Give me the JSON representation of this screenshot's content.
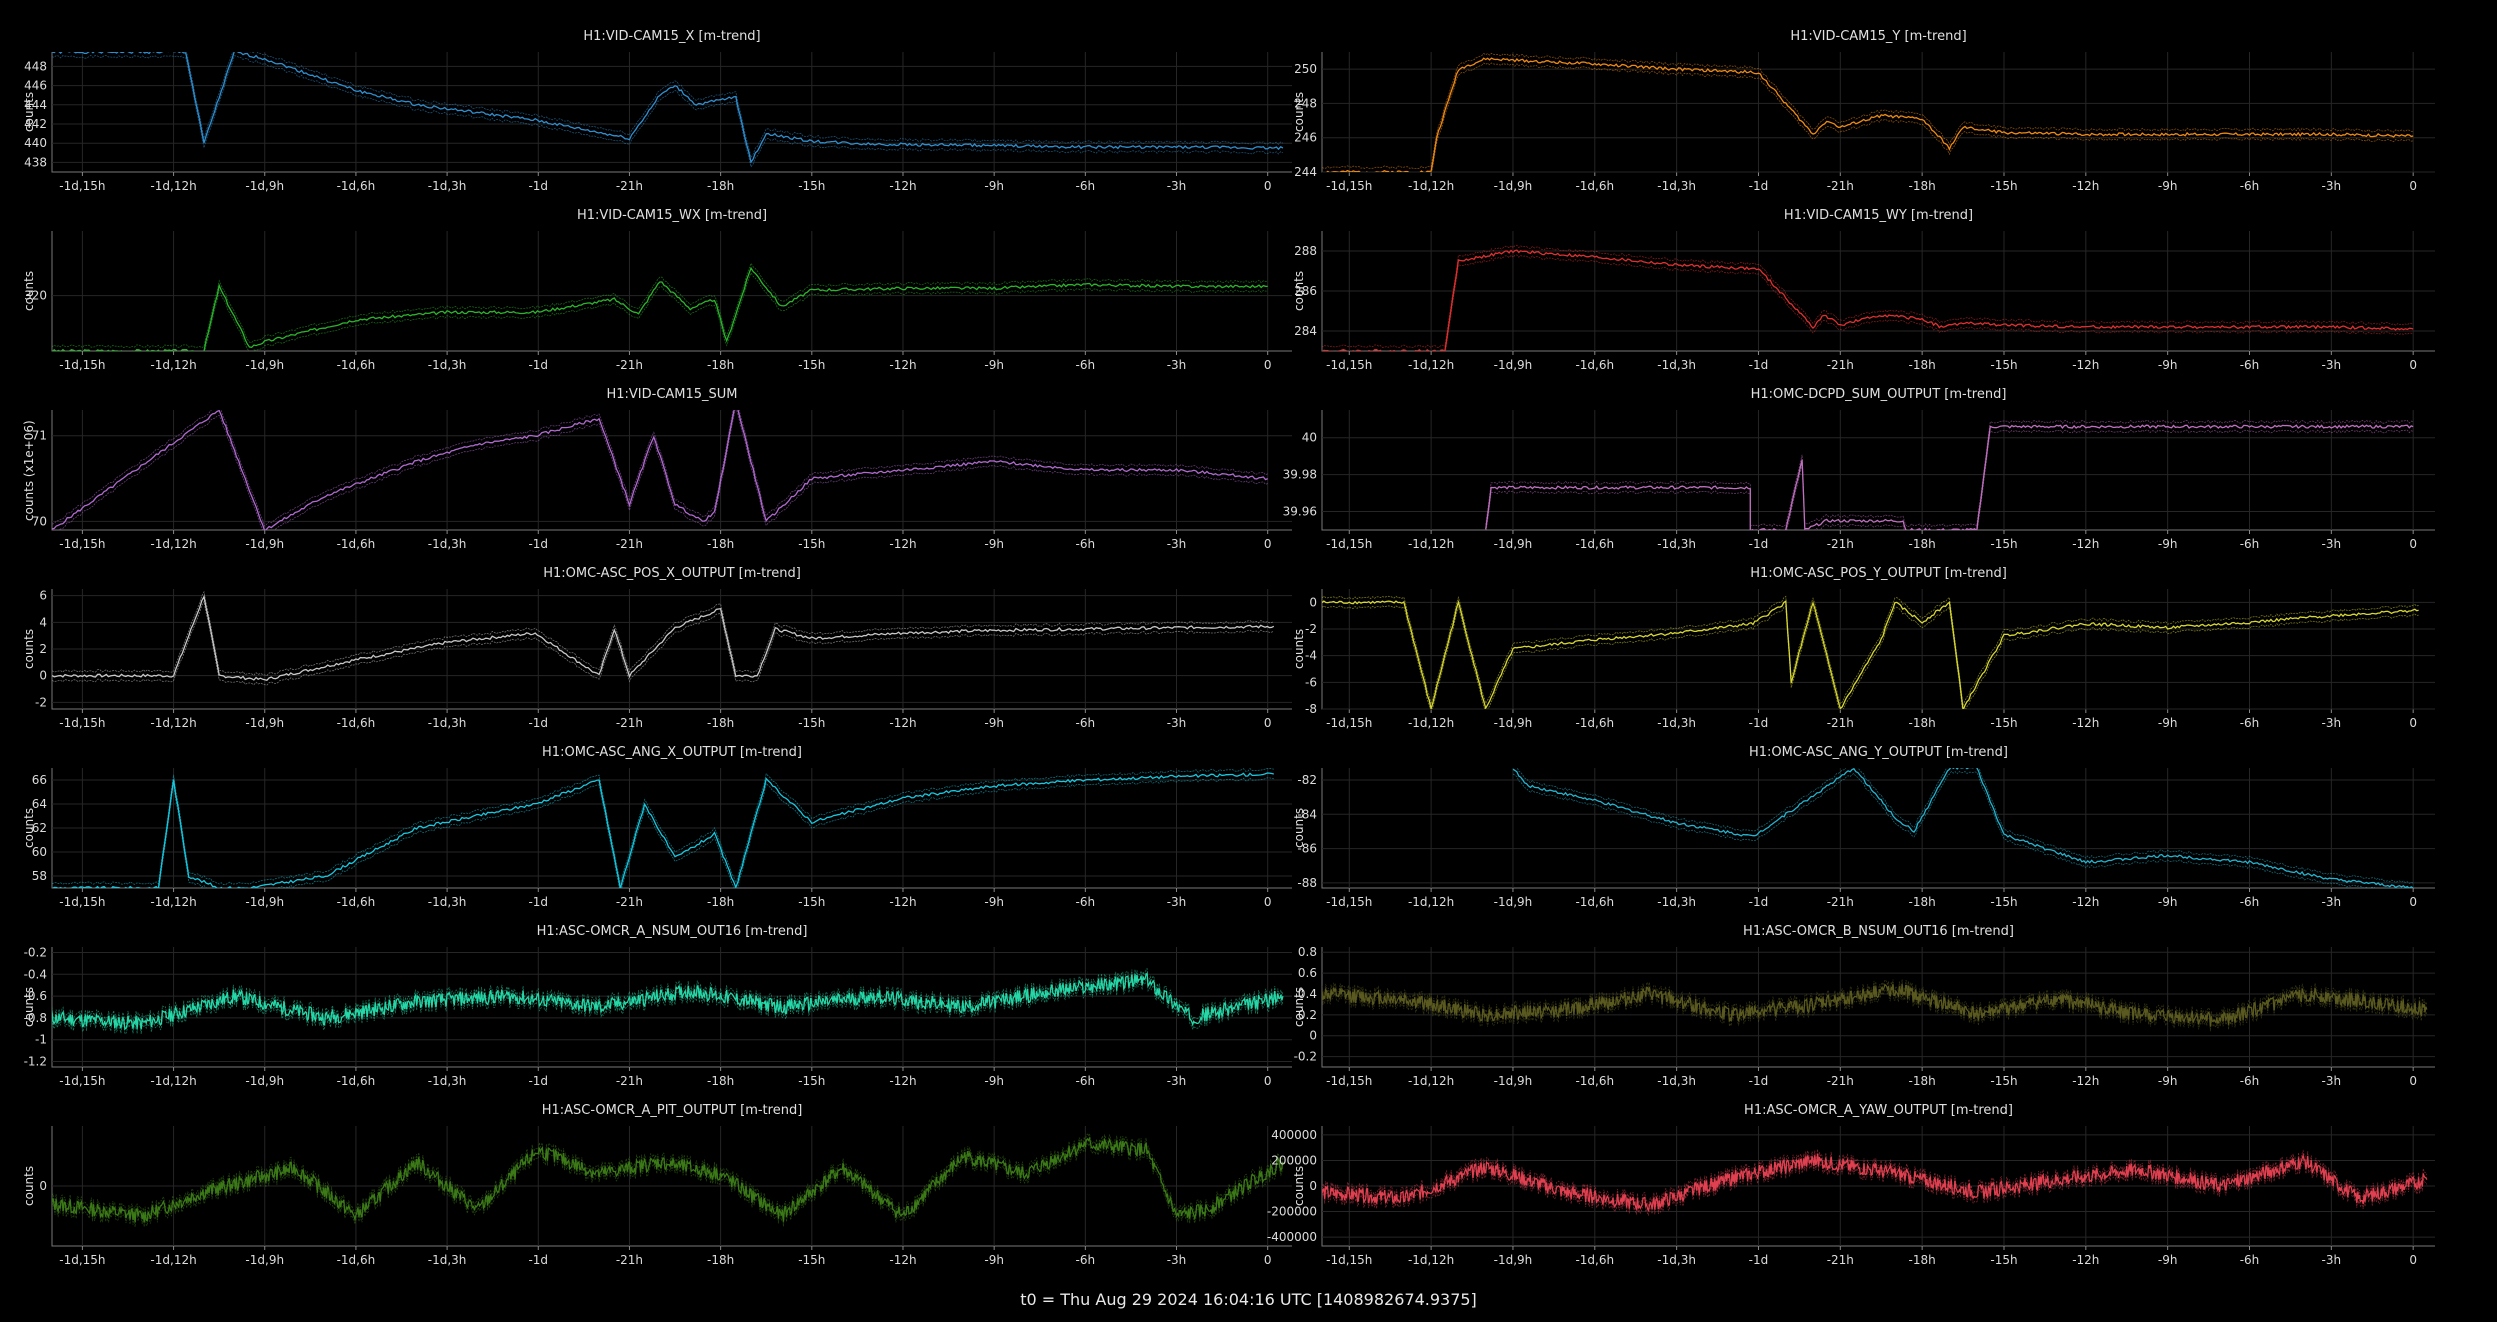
{
  "footer": "t0 = Thu Aug 29 2024 16:04:16 UTC [1408982674.9375]",
  "x_ticks": [
    "-1d,15h",
    "-1d,12h",
    "-1d,9h",
    "-1d,6h",
    "-1d,3h",
    "-1d",
    "-21h",
    "-18h",
    "-15h",
    "-12h",
    "-9h",
    "-6h",
    "-3h",
    "0"
  ],
  "x_tick_hours": [
    -39,
    -36,
    -33,
    -30,
    -27,
    -24,
    -21,
    -18,
    -15,
    -12,
    -9,
    -6,
    -3,
    0
  ],
  "chart_data": [
    {
      "type": "line",
      "title": "H1:VID-CAM15_X [m-trend]",
      "ylabel": "counts",
      "ylim": [
        437,
        449.5
      ],
      "yticks": [
        438,
        440,
        442,
        444,
        446,
        448
      ],
      "color": "#2f8fd0",
      "series": {
        "x": [
          -40,
          -35.6,
          -35,
          -34,
          -33,
          -30,
          -28,
          -24.1,
          -21,
          -20,
          -19.5,
          -18.8,
          -17.5,
          -17,
          -16.5,
          -15,
          -13,
          -10,
          -6,
          -3,
          0.5
        ],
        "y": [
          449.5,
          449.5,
          440,
          449.5,
          448.8,
          445.5,
          444,
          442.4,
          440.5,
          445,
          446,
          444,
          444.8,
          438,
          441,
          440.2,
          439.9,
          439.8,
          439.6,
          439.6,
          439.5
        ]
      }
    },
    {
      "type": "line",
      "title": "H1:VID-CAM15_Y [m-trend]",
      "ylabel": "counts",
      "ylim": [
        244,
        251
      ],
      "yticks": [
        244,
        246,
        248,
        250
      ],
      "color": "#f08a14",
      "series": {
        "x": [
          -40,
          -36,
          -35.8,
          -35,
          -34,
          -30,
          -27,
          -24,
          -22,
          -21.5,
          -21,
          -19.5,
          -18,
          -17,
          -16.5,
          -15,
          -12,
          -9,
          -6,
          -3,
          0
        ],
        "y": [
          244,
          244,
          246,
          250,
          250.6,
          250.3,
          250,
          249.8,
          246.2,
          247,
          246.6,
          247.3,
          247.1,
          245.4,
          246.6,
          246.3,
          246.2,
          246.2,
          246.2,
          246.2,
          246.1
        ]
      }
    },
    {
      "type": "line",
      "title": "H1:VID-CAM15_WX [m-trend]",
      "ylabel": "counts",
      "ylim": [
        317,
        323.5
      ],
      "yticks": [
        320
      ],
      "color": "#2cb52c",
      "series": {
        "x": [
          -40,
          -35,
          -34.5,
          -33.5,
          -33,
          -30,
          -27,
          -24.1,
          -21.5,
          -20.7,
          -20,
          -19,
          -18.2,
          -17.8,
          -17,
          -16,
          -15,
          -12,
          -9,
          -6,
          -3,
          0
        ],
        "y": [
          317,
          317,
          320.5,
          317.2,
          317.5,
          318.7,
          319.1,
          319.1,
          319.8,
          319,
          320.8,
          319.3,
          319.8,
          317.5,
          321.5,
          319.4,
          320.3,
          320.4,
          320.4,
          320.6,
          320.5,
          320.5
        ]
      }
    },
    {
      "type": "line",
      "title": "H1:VID-CAM15_WY [m-trend]",
      "ylabel": "counts",
      "ylim": [
        283,
        289
      ],
      "yticks": [
        284,
        286,
        288
      ],
      "color": "#e03030",
      "series": {
        "x": [
          -40,
          -35.5,
          -35,
          -33,
          -30,
          -27,
          -24,
          -22,
          -21.6,
          -21,
          -19.5,
          -18,
          -17.3,
          -16.5,
          -15,
          -12,
          -9,
          -6,
          -3,
          0
        ],
        "y": [
          283,
          283,
          287.5,
          288,
          287.7,
          287.3,
          287.1,
          284.2,
          284.8,
          284.3,
          284.8,
          284.6,
          284.2,
          284.4,
          284.3,
          284.2,
          284.2,
          284.2,
          284.2,
          284.1
        ]
      }
    },
    {
      "type": "line",
      "title": "H1:VID-CAM15_SUM",
      "ylabel": "counts (x1e+06)",
      "ylim": [
        69.9,
        71.3
      ],
      "yticks": [
        70,
        71
      ],
      "color": "#b06ad0",
      "series": {
        "x": [
          -40,
          -34.5,
          -33,
          -31,
          -28,
          -26,
          -24.1,
          -22,
          -21,
          -20.2,
          -19.5,
          -18.6,
          -18.2,
          -17.5,
          -16.5,
          -15.6,
          -15,
          -12,
          -9,
          -6,
          -3,
          0
        ],
        "y": [
          69.9,
          71.3,
          69.9,
          70.3,
          70.7,
          70.9,
          71,
          71.2,
          70.2,
          71,
          70.2,
          70,
          70.1,
          71.4,
          70,
          70.3,
          70.5,
          70.6,
          70.7,
          70.6,
          70.6,
          70.5
        ]
      }
    },
    {
      "type": "line",
      "title": "H1:OMC-DCPD_SUM_OUTPUT [m-trend]",
      "ylabel": "",
      "ylim": [
        39.95,
        40.015
      ],
      "yticks": [
        39.96,
        39.98,
        40.0
      ],
      "color": "#c070c0",
      "series": {
        "x": [
          -34,
          -33.8,
          -33,
          -30,
          -27,
          -24.3,
          -24.3,
          -23,
          -22.4,
          -22.3,
          -21.5,
          -20,
          -18.7,
          -18.6,
          -16,
          -15.5,
          -12,
          -9,
          -6,
          -3,
          0
        ],
        "y": [
          39.95,
          39.973,
          39.973,
          39.973,
          39.973,
          39.973,
          39.95,
          39.95,
          39.988,
          39.95,
          39.955,
          39.955,
          39.955,
          39.95,
          39.95,
          40.006,
          40.006,
          40.006,
          40.006,
          40.006,
          40.006
        ]
      }
    },
    {
      "type": "line",
      "title": "H1:OMC-ASC_POS_X_OUTPUT [m-trend]",
      "ylabel": "counts",
      "ylim": [
        -2.5,
        6.5
      ],
      "yticks": [
        -2,
        0,
        2,
        4,
        6
      ],
      "color": "#c8c8c8",
      "series": {
        "x": [
          -40,
          -36.5,
          -36,
          -35,
          -34.5,
          -33,
          -30,
          -27,
          -24.1,
          -22,
          -21.5,
          -21,
          -19.5,
          -18,
          -17.5,
          -16.8,
          -16.2,
          -15,
          -12,
          -9,
          -6,
          -3,
          0.2
        ],
        "y": [
          0,
          0,
          0,
          6,
          0,
          -0.3,
          1.2,
          2.5,
          3.2,
          0,
          3.5,
          0,
          3.6,
          5,
          0,
          0,
          3.5,
          2.8,
          3.2,
          3.4,
          3.5,
          3.6,
          3.7
        ]
      }
    },
    {
      "type": "line",
      "title": "H1:OMC-ASC_POS_Y_OUTPUT [m-trend]",
      "ylabel": "counts",
      "ylim": [
        -8,
        1
      ],
      "yticks": [
        -8,
        -6,
        -4,
        -2,
        0
      ],
      "color": "#d8d832",
      "series": {
        "x": [
          -40,
          -37,
          -36,
          -35,
          -34,
          -33,
          -30,
          -27,
          -24.2,
          -23,
          -22.8,
          -22,
          -21,
          -19.5,
          -19,
          -18,
          -17,
          -16.5,
          -15,
          -12,
          -9,
          -6,
          -3,
          0.2
        ],
        "y": [
          0,
          0,
          -8,
          0,
          -8,
          -3.5,
          -2.8,
          -2.3,
          -1.6,
          0,
          -6,
          0,
          -8,
          -2.8,
          0,
          -1.5,
          0,
          -8,
          -2.5,
          -1.6,
          -1.9,
          -1.5,
          -1.0,
          -0.6
        ]
      }
    },
    {
      "type": "line",
      "title": "H1:OMC-ASC_ANG_X_OUTPUT [m-trend]",
      "ylabel": "counts",
      "ylim": [
        57,
        67
      ],
      "yticks": [
        58,
        60,
        62,
        64,
        66
      ],
      "color": "#16c8e0",
      "series": {
        "x": [
          -40,
          -36.5,
          -36,
          -35.5,
          -34.5,
          -33.5,
          -31,
          -28,
          -24.1,
          -22,
          -21.3,
          -20.5,
          -19.5,
          -18.2,
          -17.5,
          -16.5,
          -15,
          -12,
          -9,
          -6,
          -3,
          0.2
        ],
        "y": [
          57,
          57,
          66,
          58,
          57,
          57,
          58,
          62,
          64,
          66,
          57,
          64,
          59.5,
          61.5,
          57,
          66,
          62.5,
          64.5,
          65.5,
          66,
          66.3,
          66.5
        ]
      }
    },
    {
      "type": "line",
      "title": "H1:OMC-ASC_ANG_Y_OUTPUT [m-trend]",
      "ylabel": "counts",
      "ylim": [
        -88.3,
        -81.3
      ],
      "yticks": [
        -88,
        -86,
        -84,
        -82
      ],
      "color": "#22b4d0",
      "series": {
        "x": [
          -33,
          -32.5,
          -30,
          -27,
          -24.2,
          -20.5,
          -19,
          -18.3,
          -17,
          -16,
          -15,
          -12,
          -9,
          -6,
          -3,
          0
        ],
        "y": [
          -81.3,
          -82.3,
          -83.2,
          -84.5,
          -85.3,
          -81.3,
          -84.2,
          -85,
          -81.3,
          -81.3,
          -85.2,
          -86.8,
          -86.4,
          -86.8,
          -87.8,
          -88.3
        ]
      }
    },
    {
      "type": "line",
      "title": "H1:ASC-OMCR_A_NSUM_OUT16 [m-trend]",
      "ylabel": "counts",
      "ylim": [
        -1.25,
        -0.15
      ],
      "yticks": [
        -1.2,
        -1.0,
        -0.8,
        -0.6,
        -0.4,
        -0.2
      ],
      "color": "#26d8a8",
      "series": {
        "x": [
          -40,
          -37,
          -34,
          -31,
          -28,
          -25,
          -22,
          -19,
          -16,
          -13,
          -10,
          -7,
          -4,
          -2.5,
          0.5
        ],
        "y": [
          -0.8,
          -0.85,
          -0.6,
          -0.8,
          -0.65,
          -0.6,
          -0.7,
          -0.55,
          -0.7,
          -0.6,
          -0.7,
          -0.55,
          -0.45,
          -0.8,
          -0.6
        ]
      }
    },
    {
      "type": "line",
      "title": "H1:ASC-OMCR_B_NSUM_OUT16 [m-trend]",
      "ylabel": "counts",
      "ylim": [
        -0.3,
        0.85
      ],
      "yticks": [
        -0.2,
        0,
        0.2,
        0.4,
        0.6,
        0.8
      ],
      "color": "#5a5a20",
      "series": {
        "x": [
          -40,
          -37,
          -34,
          -31,
          -28,
          -25,
          -22,
          -19,
          -16,
          -13,
          -10,
          -7,
          -4,
          0.5
        ],
        "y": [
          0.4,
          0.35,
          0.2,
          0.25,
          0.4,
          0.2,
          0.3,
          0.45,
          0.2,
          0.35,
          0.2,
          0.15,
          0.4,
          0.25
        ]
      }
    },
    {
      "type": "line",
      "title": "H1:ASC-OMCR_A_PIT_OUTPUT [m-trend]",
      "ylabel": "counts",
      "ylim": [
        -1,
        1
      ],
      "yticks": [
        0
      ],
      "color": "#3c7a18",
      "series": {
        "x": [
          -40,
          -37,
          -35,
          -32,
          -30,
          -28,
          -26,
          -24,
          -22,
          -20,
          -18,
          -16,
          -14,
          -12,
          -10,
          -8,
          -6,
          -4,
          -3,
          -2,
          0.5
        ],
        "y": [
          -0.3,
          -0.5,
          -0.1,
          0.3,
          -0.5,
          0.4,
          -0.4,
          0.6,
          0.2,
          0.4,
          0.2,
          -0.5,
          0.3,
          -0.5,
          0.5,
          0.2,
          0.7,
          0.6,
          -0.5,
          -0.4,
          0.4
        ]
      }
    },
    {
      "type": "line",
      "title": "H1:ASC-OMCR_A_YAW_OUTPUT [m-trend]",
      "ylabel": "counts",
      "ylim": [
        -470000,
        470000
      ],
      "yticks": [
        -400000,
        -200000,
        0,
        200000,
        400000
      ],
      "color": "#e04050",
      "series": {
        "x": [
          -40,
          -37,
          -34,
          -31,
          -28,
          -25,
          -22,
          -19,
          -16,
          -13,
          -10,
          -7,
          -4,
          -2,
          0.5
        ],
        "y": [
          -50000,
          -100000,
          150000,
          -50000,
          -150000,
          60000,
          200000,
          100000,
          -50000,
          50000,
          130000,
          0,
          200000,
          -100000,
          50000
        ]
      }
    }
  ]
}
